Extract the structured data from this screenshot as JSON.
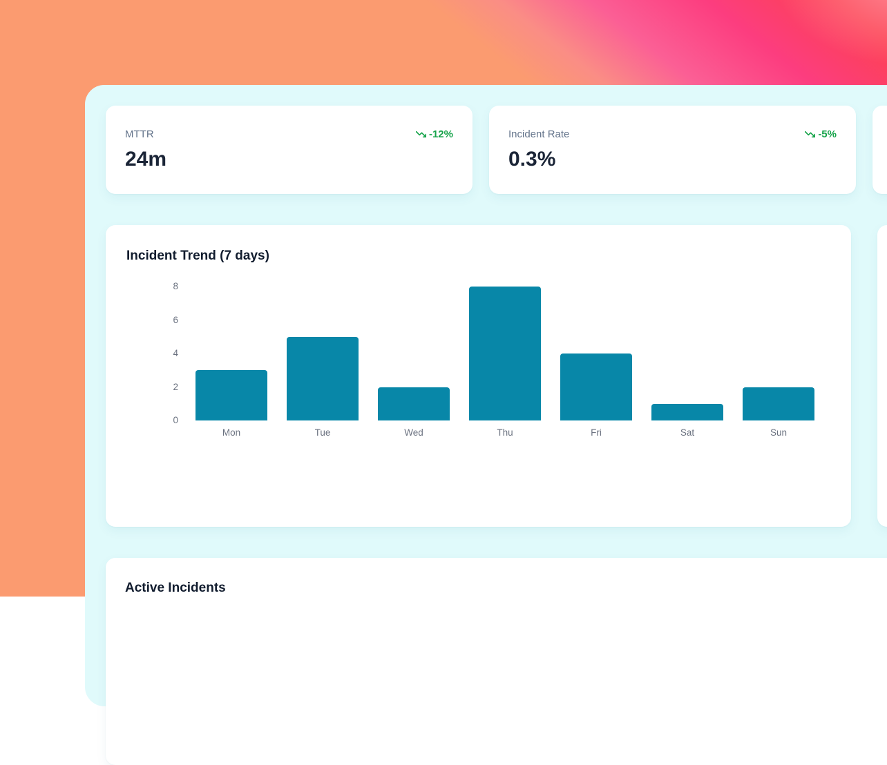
{
  "metrics": [
    {
      "label": "MTTR",
      "value": "24m",
      "delta": "-12%",
      "trend": "down"
    },
    {
      "label": "Incident Rate",
      "value": "0.3%",
      "delta": "-5%",
      "trend": "down"
    }
  ],
  "delta_color": "#16a34a",
  "chart_data": {
    "type": "bar",
    "title": "Incident Trend (7 days)",
    "categories": [
      "Mon",
      "Tue",
      "Wed",
      "Thu",
      "Fri",
      "Sat",
      "Sun"
    ],
    "values": [
      3,
      5,
      2,
      8,
      4,
      1,
      2
    ],
    "ylim": [
      0,
      8
    ],
    "yticks": [
      0,
      2,
      4,
      6,
      8
    ],
    "bar_color": "#0887a8",
    "xlabel": "",
    "ylabel": "",
    "grid": false,
    "legend": false
  },
  "active_incidents": {
    "title": "Active Incidents"
  }
}
